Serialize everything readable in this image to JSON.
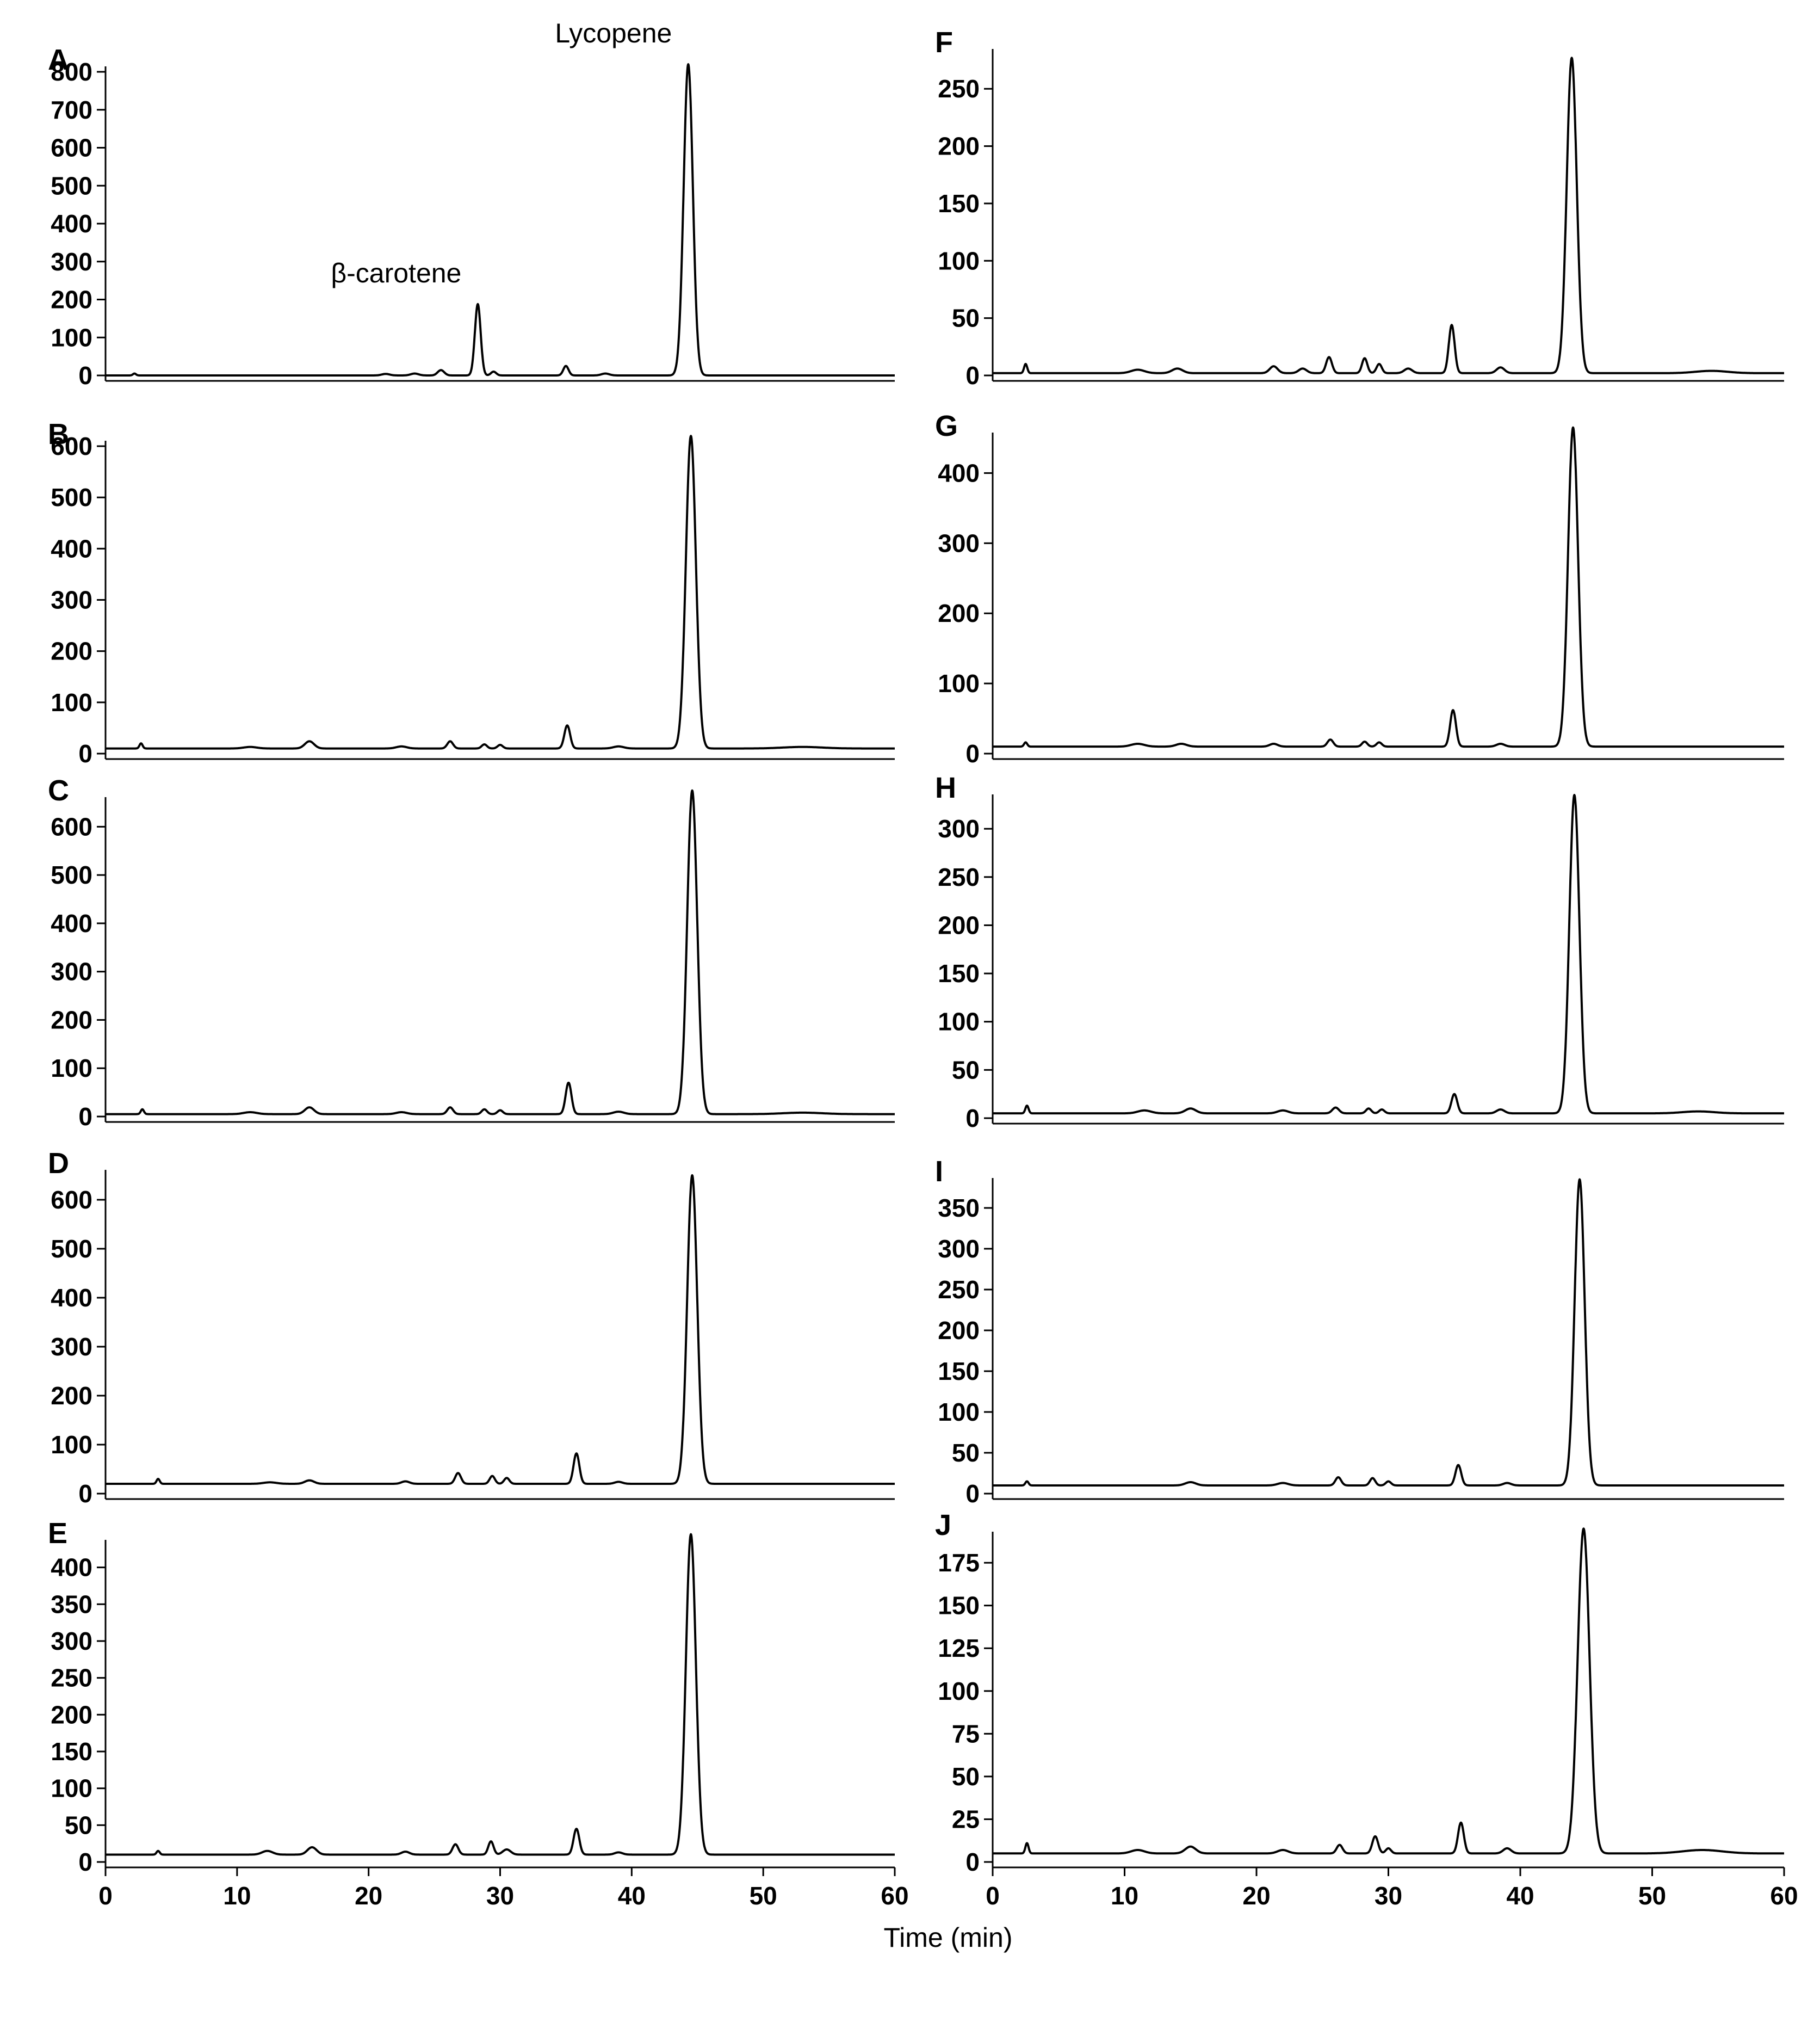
{
  "figure": {
    "xlabel": "Time (min)",
    "line_color": "#000000",
    "background": "#ffffff"
  },
  "chart_data": [
    {
      "panel": "A",
      "type": "line",
      "xlim": [
        0,
        60
      ],
      "ylim": [
        0,
        800
      ],
      "yticks": [
        0,
        100,
        200,
        300,
        400,
        500,
        600,
        700,
        800
      ],
      "xticks": [],
      "baseline": 0,
      "peaks": [
        [
          2.2,
          5,
          0.12
        ],
        [
          21.3,
          4,
          0.3
        ],
        [
          23.5,
          5,
          0.3
        ],
        [
          25.5,
          14,
          0.25
        ],
        [
          28.3,
          188,
          0.22
        ],
        [
          29.5,
          10,
          0.2
        ],
        [
          35,
          25,
          0.2
        ],
        [
          38,
          5,
          0.3
        ],
        [
          44.3,
          820,
          0.35
        ]
      ],
      "annotations": [
        {
          "text": "β-carotene",
          "x": 28.3,
          "y": 188
        },
        {
          "text": "Lycopene",
          "x": 44.3,
          "y": 820
        }
      ]
    },
    {
      "panel": "B",
      "type": "line",
      "xlim": [
        0,
        60
      ],
      "ylim": [
        0,
        600
      ],
      "yticks": [
        0,
        100,
        200,
        300,
        400,
        500,
        600
      ],
      "xticks": [],
      "baseline": 10,
      "peaks": [
        [
          2.7,
          10,
          0.12
        ],
        [
          11,
          3,
          0.5
        ],
        [
          15.5,
          14,
          0.35
        ],
        [
          22.5,
          4,
          0.4
        ],
        [
          26.2,
          14,
          0.22
        ],
        [
          28.8,
          8,
          0.2
        ],
        [
          30,
          7,
          0.2
        ],
        [
          35.1,
          45,
          0.22
        ],
        [
          39,
          4,
          0.4
        ],
        [
          44.5,
          610,
          0.38
        ],
        [
          53,
          3,
          1.5
        ]
      ],
      "annotations": []
    },
    {
      "panel": "C",
      "type": "line",
      "xlim": [
        0,
        60
      ],
      "ylim": [
        0,
        650
      ],
      "yticks": [
        0,
        100,
        200,
        300,
        400,
        500,
        600
      ],
      "xticks": [],
      "baseline": 5,
      "peaks": [
        [
          2.8,
          10,
          0.12
        ],
        [
          11,
          4,
          0.5
        ],
        [
          15.5,
          14,
          0.35
        ],
        [
          22.5,
          4,
          0.4
        ],
        [
          26.2,
          14,
          0.22
        ],
        [
          28.8,
          10,
          0.2
        ],
        [
          30,
          8,
          0.2
        ],
        [
          35.2,
          65,
          0.22
        ],
        [
          39,
          5,
          0.4
        ],
        [
          44.6,
          670,
          0.38
        ],
        [
          53,
          3,
          1.5
        ]
      ],
      "annotations": []
    },
    {
      "panel": "D",
      "type": "line",
      "xlim": [
        0,
        60
      ],
      "ylim": [
        0,
        650
      ],
      "yticks": [
        0,
        100,
        200,
        300,
        400,
        500,
        600
      ],
      "xticks": [],
      "baseline": 20,
      "peaks": [
        [
          4,
          10,
          0.12
        ],
        [
          12.5,
          3,
          0.5
        ],
        [
          15.5,
          7,
          0.35
        ],
        [
          22.8,
          5,
          0.3
        ],
        [
          26.8,
          22,
          0.22
        ],
        [
          29.4,
          16,
          0.2
        ],
        [
          30.5,
          12,
          0.2
        ],
        [
          35.8,
          62,
          0.22
        ],
        [
          39,
          4,
          0.3
        ],
        [
          44.6,
          630,
          0.38
        ]
      ],
      "annotations": []
    },
    {
      "panel": "E",
      "type": "line",
      "xlim": [
        0,
        60
      ],
      "ylim": [
        0,
        430
      ],
      "yticks": [
        0,
        50,
        100,
        150,
        200,
        250,
        300,
        350,
        400
      ],
      "xticks": [
        0,
        10,
        20,
        30,
        40,
        50,
        60
      ],
      "baseline": 10,
      "peaks": [
        [
          4,
          5,
          0.12
        ],
        [
          12.3,
          5,
          0.4
        ],
        [
          15.7,
          10,
          0.35
        ],
        [
          22.8,
          4,
          0.3
        ],
        [
          26.6,
          14,
          0.22
        ],
        [
          29.3,
          18,
          0.2
        ],
        [
          30.5,
          7,
          0.3
        ],
        [
          35.8,
          35,
          0.22
        ],
        [
          39,
          3,
          0.3
        ],
        [
          44.5,
          435,
          0.38
        ]
      ],
      "annotations": []
    },
    {
      "panel": "F",
      "type": "line",
      "xlim": [
        0,
        60
      ],
      "ylim": [
        0,
        280
      ],
      "yticks": [
        0,
        50,
        100,
        150,
        200,
        250
      ],
      "xticks": [],
      "baseline": 2,
      "peaks": [
        [
          2.5,
          8,
          0.12
        ],
        [
          11,
          3,
          0.5
        ],
        [
          14,
          4,
          0.4
        ],
        [
          21.3,
          6,
          0.3
        ],
        [
          23.5,
          4,
          0.3
        ],
        [
          25.5,
          14,
          0.22
        ],
        [
          28.2,
          13,
          0.2
        ],
        [
          29.3,
          8,
          0.2
        ],
        [
          31.5,
          4,
          0.3
        ],
        [
          34.8,
          42,
          0.22
        ],
        [
          38.5,
          5,
          0.3
        ],
        [
          43.9,
          275,
          0.38
        ],
        [
          54.5,
          2,
          1.2
        ]
      ],
      "annotations": []
    },
    {
      "panel": "G",
      "type": "line",
      "xlim": [
        0,
        60
      ],
      "ylim": [
        0,
        450
      ],
      "yticks": [
        0,
        100,
        200,
        300,
        400
      ],
      "xticks": [],
      "baseline": 10,
      "peaks": [
        [
          2.5,
          6,
          0.12
        ],
        [
          11,
          4,
          0.5
        ],
        [
          14.3,
          4,
          0.4
        ],
        [
          21.3,
          4,
          0.3
        ],
        [
          25.6,
          10,
          0.22
        ],
        [
          28.2,
          7,
          0.2
        ],
        [
          29.3,
          6,
          0.2
        ],
        [
          34.9,
          52,
          0.22
        ],
        [
          38.5,
          4,
          0.3
        ],
        [
          44,
          455,
          0.38
        ]
      ],
      "annotations": []
    },
    {
      "panel": "H",
      "type": "line",
      "xlim": [
        0,
        60
      ],
      "ylim": [
        0,
        330
      ],
      "yticks": [
        0,
        50,
        100,
        150,
        200,
        250,
        300
      ],
      "xticks": [],
      "baseline": 5,
      "peaks": [
        [
          2.6,
          8,
          0.12
        ],
        [
          11.5,
          3,
          0.5
        ],
        [
          15,
          5,
          0.4
        ],
        [
          22,
          3,
          0.4
        ],
        [
          26,
          6,
          0.25
        ],
        [
          28.5,
          5,
          0.2
        ],
        [
          29.5,
          4,
          0.2
        ],
        [
          35,
          20,
          0.22
        ],
        [
          38.5,
          4,
          0.3
        ],
        [
          44.1,
          330,
          0.38
        ],
        [
          53.5,
          2,
          1.2
        ]
      ],
      "annotations": []
    },
    {
      "panel": "I",
      "type": "line",
      "xlim": [
        0,
        60
      ],
      "ylim": [
        0,
        380
      ],
      "yticks": [
        0,
        50,
        100,
        150,
        200,
        250,
        300,
        350
      ],
      "xticks": [],
      "baseline": 10,
      "peaks": [
        [
          2.6,
          5,
          0.12
        ],
        [
          15,
          4,
          0.4
        ],
        [
          22,
          3,
          0.4
        ],
        [
          26.2,
          10,
          0.22
        ],
        [
          28.8,
          9,
          0.2
        ],
        [
          30,
          5,
          0.2
        ],
        [
          35.3,
          25,
          0.22
        ],
        [
          39,
          3,
          0.3
        ],
        [
          44.5,
          375,
          0.38
        ]
      ],
      "annotations": []
    },
    {
      "panel": "J",
      "type": "line",
      "xlim": [
        0,
        60
      ],
      "ylim": [
        0,
        190
      ],
      "yticks": [
        0,
        25,
        50,
        75,
        100,
        125,
        150,
        175
      ],
      "xticks": [
        0,
        10,
        20,
        30,
        40,
        50,
        60
      ],
      "baseline": 5,
      "peaks": [
        [
          2.6,
          6,
          0.12
        ],
        [
          11,
          2,
          0.5
        ],
        [
          15,
          4,
          0.4
        ],
        [
          22,
          2,
          0.4
        ],
        [
          26.3,
          5,
          0.22
        ],
        [
          29,
          10,
          0.22
        ],
        [
          30,
          3,
          0.2
        ],
        [
          35.5,
          18,
          0.22
        ],
        [
          39,
          3,
          0.3
        ],
        [
          44.8,
          190,
          0.45
        ],
        [
          53.8,
          2,
          1.5
        ]
      ],
      "annotations": []
    }
  ]
}
